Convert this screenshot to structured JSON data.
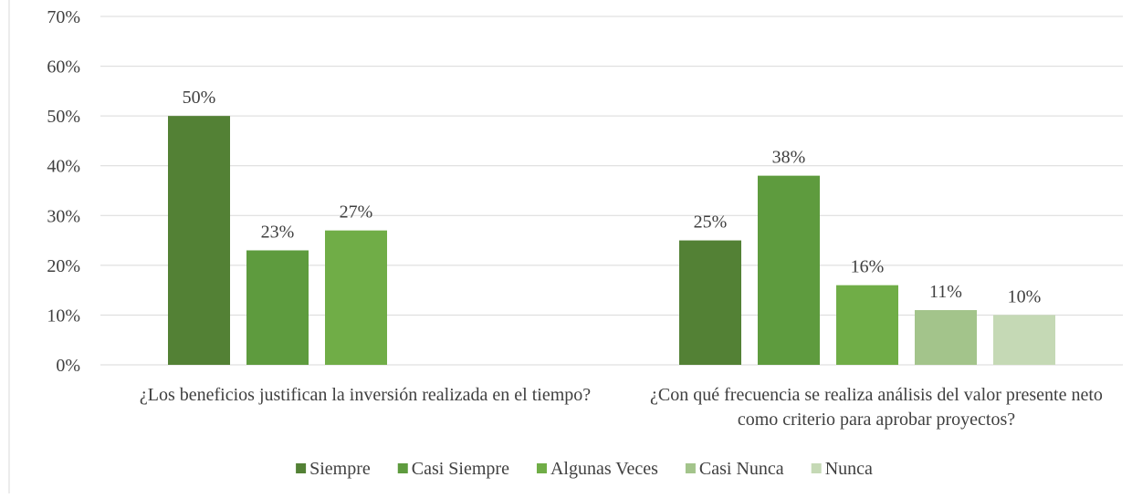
{
  "chart_data": {
    "type": "bar",
    "categories": [
      "¿Los beneficios justifican la inversión realizada en el tiempo?",
      "¿Con qué frecuencia se realiza análisis del valor presente neto como criterio para aprobar proyectos?"
    ],
    "series": [
      {
        "name": "Siempre",
        "color": "#538135",
        "values": [
          50,
          25
        ],
        "value_labels": [
          "50%",
          "25%"
        ]
      },
      {
        "name": "Casi Siempre",
        "color": "#5e9b3e",
        "values": [
          23,
          38
        ],
        "value_labels": [
          "23%",
          "38%"
        ]
      },
      {
        "name": "Algunas Veces",
        "color": "#70ad47",
        "values": [
          27,
          16
        ],
        "value_labels": [
          "27%",
          "16%"
        ]
      },
      {
        "name": "Casi Nunca",
        "color": "#a3c48b",
        "values": [
          null,
          11
        ],
        "value_labels": [
          null,
          "11%"
        ]
      },
      {
        "name": "Nunca",
        "color": "#c5d9b5",
        "values": [
          null,
          10
        ],
        "value_labels": [
          null,
          "10%"
        ]
      }
    ],
    "ylim": [
      0,
      70
    ],
    "yticks": [
      {
        "value": 0,
        "label": "0%"
      },
      {
        "value": 10,
        "label": "10%"
      },
      {
        "value": 20,
        "label": "20%"
      },
      {
        "value": 30,
        "label": "30%"
      },
      {
        "value": 40,
        "label": "40%"
      },
      {
        "value": 50,
        "label": "50%"
      },
      {
        "value": 60,
        "label": "60%"
      },
      {
        "value": 70,
        "label": "70%"
      }
    ],
    "grid": true,
    "legend": "bottom"
  }
}
